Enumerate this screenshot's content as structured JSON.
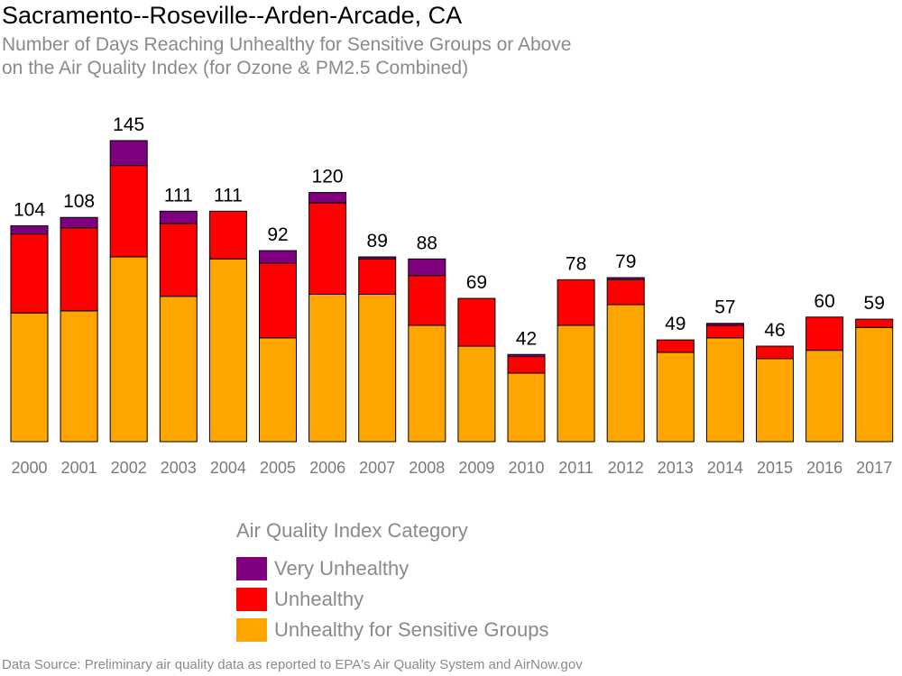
{
  "title": "Sacramento--Roseville--Arden-Arcade, CA",
  "subtitle": {
    "line1": "Number of Days Reaching Unhealthy for Sensitive Groups or Above",
    "line2": "on the Air Quality Index (for Ozone & PM2.5 Combined)"
  },
  "legend": {
    "title": "Air Quality Index Category",
    "items": [
      {
        "label": "Very Unhealthy",
        "color": "#7f007f"
      },
      {
        "label": "Unhealthy",
        "color": "#ff0000"
      },
      {
        "label": "Unhealthy for Sensitive Groups",
        "color": "#ffa500"
      }
    ]
  },
  "source": "Data Source: Preliminary air quality data as reported to EPA's Air Quality System and AirNow.gov",
  "chart_data": {
    "type": "bar",
    "stacked": true,
    "categories": [
      "2000",
      "2001",
      "2002",
      "2003",
      "2004",
      "2005",
      "2006",
      "2007",
      "2008",
      "2009",
      "2010",
      "2011",
      "2012",
      "2013",
      "2014",
      "2015",
      "2016",
      "2017"
    ],
    "totals": [
      104,
      108,
      145,
      111,
      111,
      92,
      120,
      89,
      88,
      69,
      42,
      78,
      79,
      49,
      57,
      46,
      60,
      59
    ],
    "series": [
      {
        "name": "Unhealthy for Sensitive Groups",
        "color": "#ffa500",
        "values": [
          62,
          63,
          89,
          70,
          88,
          50,
          71,
          71,
          56,
          46,
          33,
          56,
          66,
          43,
          50,
          40,
          44,
          55
        ]
      },
      {
        "name": "Unhealthy",
        "color": "#ff0000",
        "values": [
          38,
          40,
          44,
          35,
          23,
          36,
          44,
          17,
          24,
          23,
          8,
          22,
          12,
          6,
          6,
          6,
          16,
          4
        ]
      },
      {
        "name": "Very Unhealthy",
        "color": "#7f007f",
        "values": [
          4,
          5,
          12,
          6,
          0,
          6,
          5,
          1,
          8,
          0,
          1,
          0,
          1,
          0,
          1,
          0,
          0,
          0
        ]
      }
    ],
    "ylim": [
      0,
      145
    ]
  }
}
